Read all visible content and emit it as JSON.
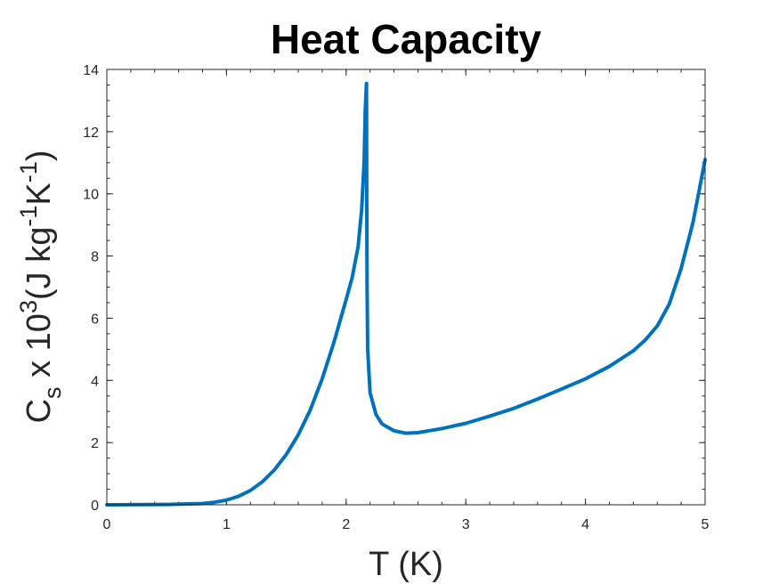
{
  "chart_data": {
    "type": "line",
    "title": "Heat Capacity",
    "xlabel": {
      "text": "T (K)"
    },
    "ylabel": {
      "base": "C",
      "sub": "s",
      "mid": " x 10",
      "sup": "3",
      "unit_open": "(J kg",
      "sup2": "-1",
      "unit_mid": "K",
      "sup3": "-1",
      "unit_close": ")"
    },
    "xlim": [
      0,
      5
    ],
    "ylim": [
      0,
      14
    ],
    "xticks": [
      0,
      1,
      2,
      3,
      4,
      5
    ],
    "yticks": [
      0,
      2,
      4,
      6,
      8,
      10,
      12,
      14
    ],
    "grid": false,
    "line_color": "#0072BD",
    "series": [
      {
        "x": [
          0,
          0.5,
          0.8,
          0.9,
          1.0,
          1.1,
          1.2,
          1.3,
          1.4,
          1.5,
          1.6,
          1.7,
          1.8,
          1.9,
          2.0,
          2.05,
          2.1,
          2.13,
          2.15,
          2.16,
          2.17,
          2.172,
          2.175,
          2.18,
          2.2,
          2.25,
          2.3,
          2.4,
          2.5,
          2.6,
          2.8,
          3.0,
          3.2,
          3.4,
          3.6,
          3.8,
          4.0,
          4.2,
          4.4,
          4.5,
          4.6,
          4.7,
          4.8,
          4.9,
          5.0
        ],
        "y": [
          0,
          0.01,
          0.04,
          0.08,
          0.15,
          0.27,
          0.46,
          0.74,
          1.12,
          1.62,
          2.25,
          3.05,
          4.05,
          5.25,
          6.6,
          7.3,
          8.3,
          9.5,
          11.0,
          12.7,
          13.55,
          10.0,
          7.0,
          5.0,
          3.6,
          2.9,
          2.6,
          2.38,
          2.3,
          2.32,
          2.45,
          2.62,
          2.85,
          3.1,
          3.4,
          3.72,
          4.05,
          4.45,
          4.95,
          5.3,
          5.75,
          6.45,
          7.6,
          9.1,
          11.1
        ]
      }
    ]
  }
}
